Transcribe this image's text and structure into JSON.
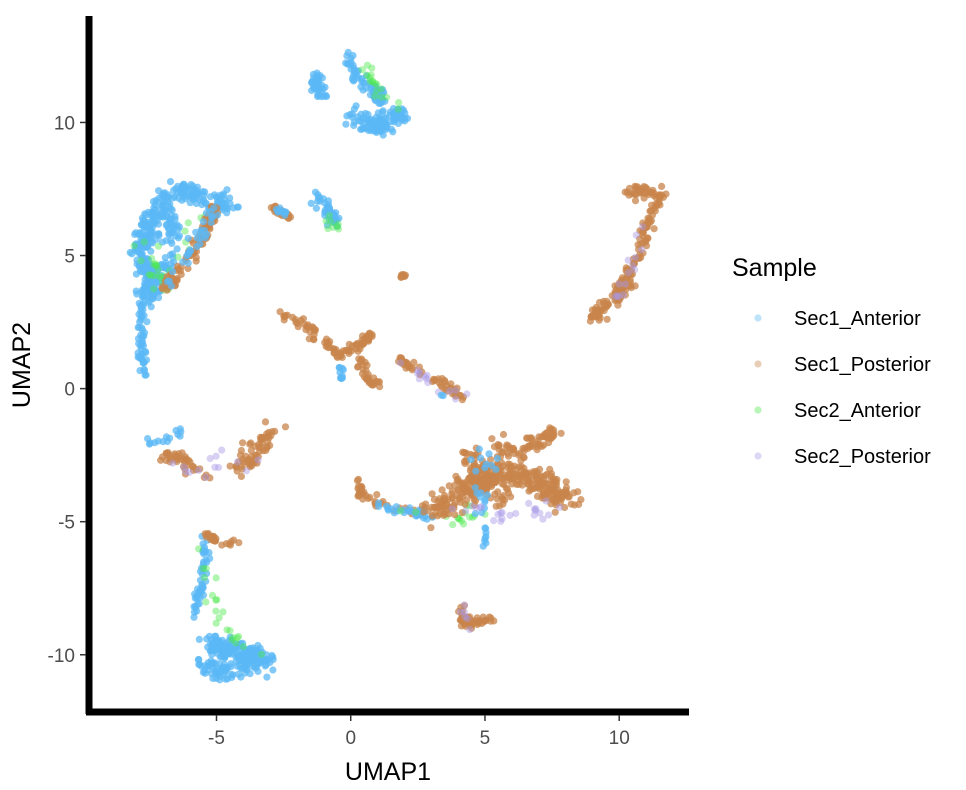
{
  "chart_data": {
    "type": "scatter",
    "title": "",
    "xlabel": "UMAP1",
    "ylabel": "UMAP2",
    "xlim": [
      -9.6,
      12.6
    ],
    "ylim": [
      -12,
      14
    ],
    "x_ticks": [
      -5,
      0,
      5,
      10
    ],
    "y_ticks": [
      -10,
      -5,
      0,
      5,
      10
    ],
    "x_tick_labels": [
      "-5",
      "0",
      "5",
      "10"
    ],
    "y_tick_labels": [
      "-10",
      "-5",
      "0",
      "5",
      "10"
    ],
    "grid": false,
    "legend": {
      "title": "Sample",
      "placement": "right"
    },
    "series": [
      {
        "name": "Sec1_Anterior",
        "color": "#5bb8f5"
      },
      {
        "name": "Sec1_Posterior",
        "color": "#c8844b"
      },
      {
        "name": "Sec2_Anterior",
        "color": "#4ee84e"
      },
      {
        "name": "Sec2_Posterior",
        "color": "#a89ae6"
      }
    ],
    "clusters": [
      {
        "series": "Sec1_Anterior",
        "path": [
          [
            -1.4,
            11.8
          ],
          [
            -1.2,
            11.4
          ],
          [
            -1.1,
            11.0
          ]
        ],
        "spread": 0.25,
        "n": 40
      },
      {
        "series": "Sec1_Anterior",
        "path": [
          [
            -0.2,
            12.6
          ],
          [
            0.2,
            11.8
          ],
          [
            0.8,
            11.2
          ],
          [
            1.2,
            10.8
          ]
        ],
        "spread": 0.22,
        "n": 60
      },
      {
        "series": "Sec1_Anterior",
        "path": [
          [
            0.0,
            10.3
          ],
          [
            0.8,
            10.1
          ],
          [
            1.6,
            10.2
          ],
          [
            2.0,
            10.3
          ]
        ],
        "spread": 0.25,
        "n": 70
      },
      {
        "series": "Sec1_Anterior",
        "path": [
          [
            0.4,
            9.9
          ],
          [
            1.0,
            9.7
          ],
          [
            1.4,
            9.8
          ]
        ],
        "spread": 0.2,
        "n": 40
      },
      {
        "series": "Sec2_Anterior",
        "path": [
          [
            0.5,
            12.0
          ],
          [
            1.0,
            11.3
          ],
          [
            2.2,
            10.3
          ]
        ],
        "spread": 0.2,
        "n": 18
      },
      {
        "series": "Sec1_Anterior",
        "path": [
          [
            -6.4,
            7.6
          ],
          [
            -6.0,
            7.4
          ],
          [
            -5.2,
            7.0
          ],
          [
            -4.6,
            6.9
          ]
        ],
        "spread": 0.3,
        "n": 90
      },
      {
        "series": "Sec1_Anterior",
        "path": [
          [
            -6.8,
            7.2
          ],
          [
            -7.2,
            6.6
          ],
          [
            -7.5,
            6.0
          ],
          [
            -7.8,
            5.4
          ]
        ],
        "spread": 0.35,
        "n": 110
      },
      {
        "series": "Sec1_Anterior",
        "path": [
          [
            -7.9,
            5.3
          ],
          [
            -7.7,
            4.6
          ],
          [
            -7.4,
            4.0
          ],
          [
            -7.6,
            3.4
          ]
        ],
        "spread": 0.35,
        "n": 120
      },
      {
        "series": "Sec1_Anterior",
        "path": [
          [
            -7.8,
            3.2
          ],
          [
            -7.8,
            2.4
          ],
          [
            -7.7,
            1.6
          ],
          [
            -7.8,
            0.6
          ]
        ],
        "spread": 0.15,
        "n": 50
      },
      {
        "series": "Sec1_Anterior",
        "path": [
          [
            -6.8,
            6.8
          ],
          [
            -6.6,
            6.0
          ],
          [
            -6.8,
            5.2
          ],
          [
            -7.0,
            4.2
          ]
        ],
        "spread": 0.25,
        "n": 50
      },
      {
        "series": "Sec2_Anterior",
        "path": [
          [
            -7.6,
            5.4
          ],
          [
            -7.2,
            4.4
          ],
          [
            -6.8,
            3.6
          ],
          [
            -5.8,
            6.8
          ]
        ],
        "spread": 0.4,
        "n": 30
      },
      {
        "series": "Sec1_Posterior",
        "path": [
          [
            -5.0,
            6.9
          ],
          [
            -5.4,
            6.0
          ],
          [
            -5.8,
            5.2
          ],
          [
            -6.4,
            4.4
          ],
          [
            -6.8,
            3.8
          ]
        ],
        "spread": 0.22,
        "n": 90
      },
      {
        "series": "Sec1_Anterior",
        "path": [
          [
            -5.0,
            6.9
          ],
          [
            -5.8,
            5.4
          ],
          [
            -6.8,
            4.0
          ]
        ],
        "spread": 0.2,
        "n": 30
      },
      {
        "series": "Sec1_Anterior",
        "path": [
          [
            -4.6,
            6.8
          ],
          [
            -4.0,
            6.8
          ]
        ],
        "spread": 0.05,
        "n": 4
      },
      {
        "series": "Sec1_Posterior",
        "path": [
          [
            -3.0,
            6.8
          ],
          [
            -2.6,
            6.6
          ],
          [
            -2.2,
            6.4
          ]
        ],
        "spread": 0.12,
        "n": 25
      },
      {
        "series": "Sec1_Anterior",
        "path": [
          [
            -3.0,
            6.8
          ],
          [
            -2.4,
            6.6
          ]
        ],
        "spread": 0.1,
        "n": 10
      },
      {
        "series": "Sec1_Anterior",
        "path": [
          [
            -1.2,
            7.2
          ],
          [
            -0.8,
            6.6
          ],
          [
            -0.6,
            6.2
          ]
        ],
        "spread": 0.18,
        "n": 40
      },
      {
        "series": "Sec2_Anterior",
        "path": [
          [
            -1.0,
            6.4
          ],
          [
            -0.4,
            6.0
          ]
        ],
        "spread": 0.2,
        "n": 8
      },
      {
        "series": "Sec1_Posterior",
        "path": [
          [
            1.9,
            4.2
          ],
          [
            2.0,
            4.3
          ]
        ],
        "spread": 0.05,
        "n": 8
      },
      {
        "series": "Sec1_Posterior",
        "path": [
          [
            -2.6,
            2.9
          ],
          [
            -1.8,
            2.4
          ],
          [
            -1.0,
            1.8
          ],
          [
            -0.4,
            1.2
          ],
          [
            0.2,
            1.6
          ],
          [
            0.8,
            2.0
          ]
        ],
        "spread": 0.15,
        "n": 90
      },
      {
        "series": "Sec1_Posterior",
        "path": [
          [
            0.3,
            1.2
          ],
          [
            0.6,
            0.4
          ],
          [
            1.0,
            0.2
          ]
        ],
        "spread": 0.12,
        "n": 30
      },
      {
        "series": "Sec1_Anterior",
        "path": [
          [
            -0.4,
            0.8
          ],
          [
            -0.3,
            0.2
          ]
        ],
        "spread": 0.1,
        "n": 10
      },
      {
        "series": "Sec1_Posterior",
        "path": [
          [
            1.8,
            1.1
          ],
          [
            2.6,
            0.6
          ],
          [
            3.4,
            0.2
          ],
          [
            4.2,
            -0.4
          ]
        ],
        "spread": 0.15,
        "n": 50
      },
      {
        "series": "Sec2_Posterior",
        "path": [
          [
            1.8,
            1.1
          ],
          [
            3.0,
            0.2
          ],
          [
            4.4,
            -0.4
          ]
        ],
        "spread": 0.2,
        "n": 14
      },
      {
        "series": "Sec1_Anterior",
        "path": [
          [
            3.4,
            -0.3
          ]
        ],
        "spread": 0.05,
        "n": 2
      },
      {
        "series": "Sec1_Posterior",
        "path": [
          [
            10.2,
            7.4
          ],
          [
            11.0,
            7.4
          ],
          [
            11.6,
            7.3
          ],
          [
            11.2,
            6.5
          ],
          [
            10.9,
            5.6
          ],
          [
            10.6,
            4.8
          ],
          [
            10.2,
            4.0
          ],
          [
            9.8,
            3.4
          ]
        ],
        "spread": 0.18,
        "n": 130
      },
      {
        "series": "Sec1_Posterior",
        "path": [
          [
            9.0,
            2.6
          ],
          [
            9.4,
            3.0
          ],
          [
            9.8,
            3.5
          ],
          [
            10.4,
            4.0
          ]
        ],
        "spread": 0.25,
        "n": 60
      },
      {
        "series": "Sec2_Posterior",
        "path": [
          [
            10.9,
            6.0
          ],
          [
            10.4,
            4.4
          ],
          [
            9.6,
            3.0
          ]
        ],
        "spread": 0.3,
        "n": 14
      },
      {
        "series": "Sec1_Posterior",
        "path": [
          [
            -7.0,
            -2.5
          ],
          [
            -6.4,
            -2.6
          ],
          [
            -5.8,
            -3.0
          ],
          [
            -5.2,
            -3.4
          ]
        ],
        "spread": 0.2,
        "n": 40
      },
      {
        "series": "Sec1_Anterior",
        "path": [
          [
            -7.6,
            -2.0
          ],
          [
            -7.0,
            -2.0
          ],
          [
            -6.2,
            -1.6
          ]
        ],
        "spread": 0.15,
        "n": 14
      },
      {
        "series": "Sec1_Posterior",
        "path": [
          [
            -4.2,
            -3.0
          ],
          [
            -3.6,
            -2.4
          ],
          [
            -2.8,
            -1.6
          ]
        ],
        "spread": 0.3,
        "n": 60
      },
      {
        "series": "Sec2_Posterior",
        "path": [
          [
            -6.6,
            -3.0
          ],
          [
            -5.0,
            -2.9
          ],
          [
            -3.4,
            -2.6
          ]
        ],
        "spread": 0.4,
        "n": 14
      },
      {
        "series": "Sec1_Posterior",
        "path": [
          [
            0.3,
            -3.4
          ],
          [
            0.4,
            -4.0
          ],
          [
            1.4,
            -4.4
          ],
          [
            2.6,
            -4.6
          ],
          [
            3.6,
            -4.4
          ]
        ],
        "spread": 0.15,
        "n": 50
      },
      {
        "series": "Sec1_Anterior",
        "path": [
          [
            1.0,
            -4.3
          ],
          [
            2.0,
            -4.6
          ],
          [
            3.0,
            -4.8
          ]
        ],
        "spread": 0.18,
        "n": 25
      },
      {
        "series": "Sec2_Anterior",
        "path": [
          [
            1.6,
            -4.6
          ],
          [
            3.6,
            -4.9
          ],
          [
            4.8,
            -4.6
          ]
        ],
        "spread": 0.25,
        "n": 16
      },
      {
        "series": "Sec1_Posterior",
        "path": [
          [
            3.2,
            -4.6
          ],
          [
            4.2,
            -3.8
          ],
          [
            5.2,
            -3.4
          ],
          [
            6.2,
            -3.2
          ],
          [
            7.2,
            -3.6
          ],
          [
            8.0,
            -4.2
          ]
        ],
        "spread": 0.45,
        "n": 320
      },
      {
        "series": "Sec1_Posterior",
        "path": [
          [
            5.4,
            -2.2
          ],
          [
            6.2,
            -2.4
          ],
          [
            7.0,
            -2.0
          ],
          [
            7.6,
            -1.6
          ]
        ],
        "spread": 0.25,
        "n": 70
      },
      {
        "series": "Sec1_Posterior",
        "path": [
          [
            4.4,
            -2.6
          ],
          [
            4.8,
            -3.0
          ],
          [
            5.8,
            -4.4
          ]
        ],
        "spread": 0.35,
        "n": 60
      },
      {
        "series": "Sec1_Anterior",
        "path": [
          [
            4.6,
            -2.4
          ],
          [
            5.2,
            -2.8
          ],
          [
            4.8,
            -4.8
          ]
        ],
        "spread": 0.4,
        "n": 20
      },
      {
        "series": "Sec2_Posterior",
        "path": [
          [
            4.0,
            -4.6
          ],
          [
            6.0,
            -4.7
          ],
          [
            8.2,
            -4.4
          ]
        ],
        "spread": 0.3,
        "n": 24
      },
      {
        "series": "Sec1_Anterior",
        "path": [
          [
            5.0,
            -5.2
          ],
          [
            5.0,
            -5.9
          ]
        ],
        "spread": 0.08,
        "n": 8
      },
      {
        "series": "Sec1_Posterior",
        "path": [
          [
            4.1,
            -8.2
          ],
          [
            4.2,
            -8.8
          ],
          [
            4.6,
            -8.8
          ],
          [
            5.3,
            -8.6
          ]
        ],
        "spread": 0.15,
        "n": 50
      },
      {
        "series": "Sec2_Posterior",
        "path": [
          [
            4.1,
            -8.2
          ],
          [
            4.4,
            -9.0
          ]
        ],
        "spread": 0.15,
        "n": 6
      },
      {
        "series": "Sec1_Anterior",
        "path": [
          [
            -5.4,
            -5.6
          ],
          [
            -5.4,
            -6.6
          ],
          [
            -5.6,
            -7.6
          ],
          [
            -5.8,
            -8.4
          ]
        ],
        "spread": 0.18,
        "n": 50
      },
      {
        "series": "Sec1_Posterior",
        "path": [
          [
            -5.4,
            -5.4
          ],
          [
            -5.0,
            -5.8
          ],
          [
            -4.2,
            -5.8
          ]
        ],
        "spread": 0.12,
        "n": 25
      },
      {
        "series": "Sec1_Anterior",
        "path": [
          [
            -5.2,
            -9.6
          ],
          [
            -4.6,
            -9.8
          ],
          [
            -3.8,
            -10.0
          ],
          [
            -3.2,
            -10.2
          ],
          [
            -4.6,
            -10.6
          ],
          [
            -5.4,
            -10.4
          ]
        ],
        "spread": 0.35,
        "n": 240
      },
      {
        "series": "Sec2_Anterior",
        "path": [
          [
            -5.6,
            -6.2
          ],
          [
            -5.2,
            -7.8
          ],
          [
            -4.4,
            -9.4
          ],
          [
            -3.4,
            -9.8
          ]
        ],
        "spread": 0.3,
        "n": 22
      }
    ]
  }
}
